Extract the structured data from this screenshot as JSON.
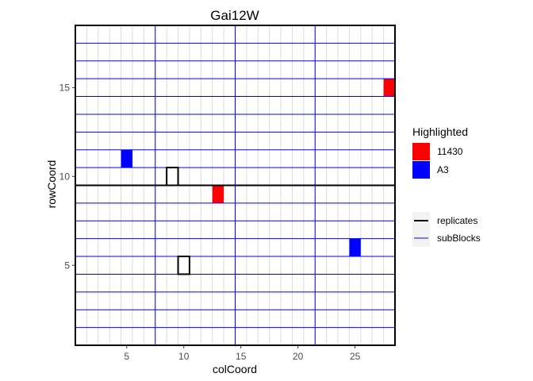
{
  "chart_data": {
    "type": "heatmap",
    "title": "Gai12W",
    "xlabel": "colCoord",
    "ylabel": "rowCoord",
    "xlim": [
      0.5,
      28.5
    ],
    "ylim": [
      0.5,
      18.5
    ],
    "x_ticks": [
      5,
      10,
      15,
      20,
      25
    ],
    "y_ticks": [
      5,
      10,
      15
    ],
    "grid": true,
    "colors": {
      "highlight_11430": "#ff0000",
      "highlight_A3": "#0000ff",
      "replicates": "#000000",
      "subBlocks": "#0000ff",
      "cell_grid": "#dcdcdc"
    },
    "highlighted_cells": [
      {
        "group": "11430",
        "col": 28,
        "row": 15
      },
      {
        "group": "11430",
        "col": 13,
        "row": 9
      },
      {
        "group": "A3",
        "col": 5,
        "row": 11
      },
      {
        "group": "A3",
        "col": 25,
        "row": 6
      }
    ],
    "outlined_cells": [
      {
        "col": 9,
        "row": 10
      },
      {
        "col": 10,
        "row": 5
      }
    ],
    "replicate_boundaries": {
      "rows": [
        9.5
      ],
      "cols": []
    },
    "subblock_boundaries": {
      "rows": [
        1.5,
        2.5,
        3.5,
        4.5,
        5.5,
        6.5,
        7.5,
        8.5,
        10.5,
        11.5,
        12.5,
        13.5,
        14.5,
        15.5,
        16.5,
        17.5
      ],
      "cols": [
        7.5,
        14.5,
        21.5
      ]
    },
    "legend": {
      "placement": "right",
      "highlight_title": "Highlighted",
      "highlight_entries": [
        {
          "label": "11430",
          "color": "#ff0000"
        },
        {
          "label": "A3",
          "color": "#0000ff"
        }
      ],
      "line_entries": [
        {
          "label": "replicates",
          "color": "#000000"
        },
        {
          "label": "subBlocks",
          "color": "#0000ff"
        }
      ]
    }
  }
}
